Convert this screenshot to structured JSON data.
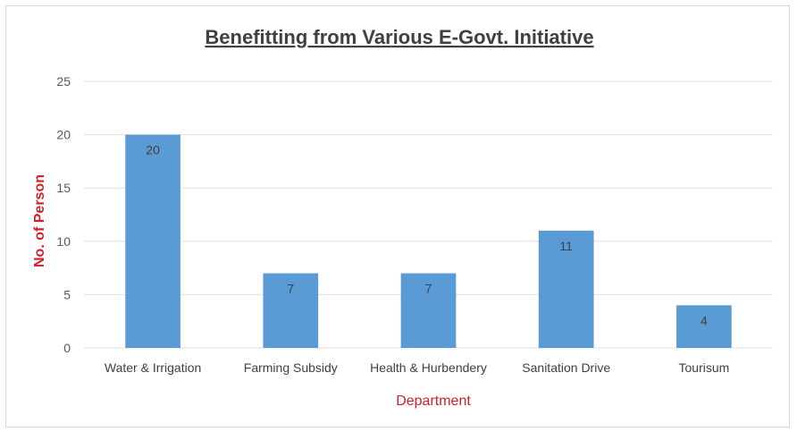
{
  "chart_data": {
    "type": "bar",
    "title": "Benefitting from Various E-Govt. Initiative",
    "xlabel": "Department",
    "ylabel": "No. of Person",
    "categories": [
      "Water & Irrigation",
      "Farming Subsidy",
      "Health & Hurbendery",
      "Sanitation Drive",
      "Tourisum"
    ],
    "values": [
      20,
      7,
      7,
      11,
      4
    ],
    "ylim": [
      0,
      25
    ],
    "yticks": [
      0,
      5,
      10,
      15,
      20,
      25
    ],
    "grid": true,
    "data_labels": true,
    "legend": "none",
    "colors": {
      "bar": "#5b9bd5",
      "axis_label": "#d0202a",
      "grid": "#e0e0e0"
    }
  }
}
